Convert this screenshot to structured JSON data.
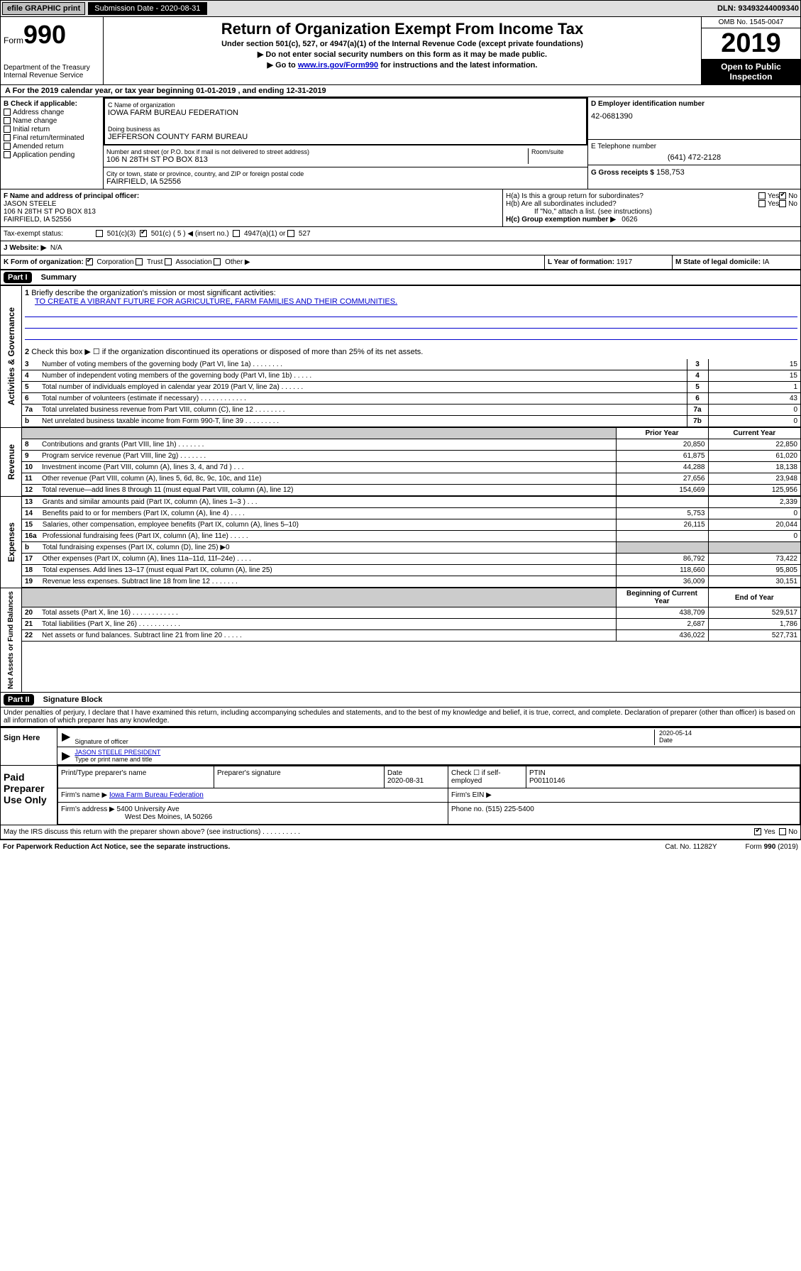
{
  "topbar": {
    "efile": "efile GRAPHIC print",
    "submission_label": "Submission Date - 2020-08-31",
    "dln": "DLN: 93493244009340"
  },
  "header": {
    "form_label": "Form",
    "form_num": "990",
    "dept": "Department of the Treasury\nInternal Revenue Service",
    "title": "Return of Organization Exempt From Income Tax",
    "subtitle": "Under section 501(c), 527, or 4947(a)(1) of the Internal Revenue Code (except private foundations)",
    "note1": "▶ Do not enter social security numbers on this form as it may be made public.",
    "note2_pre": "▶ Go to ",
    "note2_link": "www.irs.gov/Form990",
    "note2_post": " for instructions and the latest information.",
    "omb": "OMB No. 1545-0047",
    "year": "2019",
    "open": "Open to Public Inspection"
  },
  "row_a": "A For the 2019 calendar year, or tax year beginning 01-01-2019   , and ending 12-31-2019",
  "section_b": {
    "header": "B Check if applicable:",
    "items": [
      "Address change",
      "Name change",
      "Initial return",
      "Final return/terminated",
      "Amended return",
      "Application pending"
    ]
  },
  "section_c": {
    "name_label": "C Name of organization",
    "name": "IOWA FARM BUREAU FEDERATION",
    "dba_label": "Doing business as",
    "dba": "JEFFERSON COUNTY FARM BUREAU",
    "addr_label": "Number and street (or P.O. box if mail is not delivered to street address)",
    "room_label": "Room/suite",
    "addr": "106 N 28TH ST PO BOX 813",
    "city_label": "City or town, state or province, country, and ZIP or foreign postal code",
    "city": "FAIRFIELD, IA  52556"
  },
  "section_d": {
    "label": "D Employer identification number",
    "ein": "42-0681390"
  },
  "section_e": {
    "label": "E Telephone number",
    "phone": "(641) 472-2128"
  },
  "section_g": {
    "label": "G Gross receipts $",
    "val": "158,753"
  },
  "section_f": {
    "label": "F  Name and address of principal officer:",
    "name": "JASON STEELE",
    "addr1": "106 N 28TH ST PO BOX 813",
    "addr2": "FAIRFIELD, IA  52556"
  },
  "section_h": {
    "ha": "H(a)  Is this a group return for subordinates?",
    "hb": "H(b)  Are all subordinates included?",
    "hb_note": "If \"No,\" attach a list. (see instructions)",
    "hc": "H(c)  Group exemption number ▶",
    "hc_val": "0626"
  },
  "tax_status": {
    "label": "Tax-exempt status:",
    "c5": "501(c) ( 5 ) ◀ (insert no.)",
    "c3": "501(c)(3)",
    "c4947": "4947(a)(1) or",
    "c527": "527"
  },
  "section_j": {
    "label": "J Website: ▶",
    "val": "N/A"
  },
  "section_k": {
    "label": "K Form of organization:",
    "corp": "Corporation",
    "trust": "Trust",
    "assoc": "Association",
    "other": "Other ▶"
  },
  "section_l": {
    "label": "L Year of formation:",
    "val": "1917"
  },
  "section_m": {
    "label": "M State of legal domicile:",
    "val": "IA"
  },
  "part1": {
    "title": "Part I",
    "subtitle": "Summary",
    "q1_label": "1",
    "q1": "Briefly describe the organization's mission or most significant activities:",
    "q1_val": "TO CREATE A VIBRANT FUTURE FOR AGRICULTURE, FARM FAMILIES AND THEIR COMMUNITIES.",
    "q2": "Check this box ▶ ☐  if the organization discontinued its operations or disposed of more than 25% of its net assets.",
    "sidelabels": {
      "gov": "Activities & Governance",
      "rev": "Revenue",
      "exp": "Expenses",
      "net": "Net Assets or Fund Balances"
    },
    "gov_rows": [
      {
        "n": "3",
        "d": "Number of voting members of the governing body (Part VI, line 1a)   .   .   .   .   .   .   .   .",
        "b": "3",
        "v": "15"
      },
      {
        "n": "4",
        "d": "Number of independent voting members of the governing body (Part VI, line 1b)   .   .   .   .   .",
        "b": "4",
        "v": "15"
      },
      {
        "n": "5",
        "d": "Total number of individuals employed in calendar year 2019 (Part V, line 2a)   .   .   .   .   .   .",
        "b": "5",
        "v": "1"
      },
      {
        "n": "6",
        "d": "Total number of volunteers (estimate if necessary)   .   .   .   .   .   .   .   .   .   .   .   .",
        "b": "6",
        "v": "43"
      },
      {
        "n": "7a",
        "d": "Total unrelated business revenue from Part VIII, column (C), line 12   .   .   .   .   .   .   .   .",
        "b": "7a",
        "v": "0"
      },
      {
        "n": "b",
        "d": "Net unrelated business taxable income from Form 990-T, line 39   .   .   .   .   .   .   .   .   .",
        "b": "7b",
        "v": "0"
      }
    ],
    "col_prior": "Prior Year",
    "col_current": "Current Year",
    "rev_rows": [
      {
        "n": "8",
        "d": "Contributions and grants (Part VIII, line 1h)   .   .   .   .   .   .   .",
        "p": "20,850",
        "c": "22,850"
      },
      {
        "n": "9",
        "d": "Program service revenue (Part VIII, line 2g)   .   .   .   .   .   .   .",
        "p": "61,875",
        "c": "61,020"
      },
      {
        "n": "10",
        "d": "Investment income (Part VIII, column (A), lines 3, 4, and 7d )   .   .   .",
        "p": "44,288",
        "c": "18,138"
      },
      {
        "n": "11",
        "d": "Other revenue (Part VIII, column (A), lines 5, 6d, 8c, 9c, 10c, and 11e)",
        "p": "27,656",
        "c": "23,948"
      },
      {
        "n": "12",
        "d": "Total revenue—add lines 8 through 11 (must equal Part VIII, column (A), line 12)",
        "p": "154,669",
        "c": "125,956"
      }
    ],
    "exp_rows": [
      {
        "n": "13",
        "d": "Grants and similar amounts paid (Part IX, column (A), lines 1–3 )   .   .   .",
        "p": "",
        "c": "2,339"
      },
      {
        "n": "14",
        "d": "Benefits paid to or for members (Part IX, column (A), line 4)   .   .   .   .",
        "p": "5,753",
        "c": "0"
      },
      {
        "n": "15",
        "d": "Salaries, other compensation, employee benefits (Part IX, column (A), lines 5–10)",
        "p": "26,115",
        "c": "20,044"
      },
      {
        "n": "16a",
        "d": "Professional fundraising fees (Part IX, column (A), line 11e)   .   .   .   .   .",
        "p": "",
        "c": "0"
      },
      {
        "n": "b",
        "d": "Total fundraising expenses (Part IX, column (D), line 25) ▶0",
        "p": "shaded",
        "c": "shaded"
      },
      {
        "n": "17",
        "d": "Other expenses (Part IX, column (A), lines 11a–11d, 11f–24e)   .   .   .   .",
        "p": "86,792",
        "c": "73,422"
      },
      {
        "n": "18",
        "d": "Total expenses. Add lines 13–17 (must equal Part IX, column (A), line 25)",
        "p": "118,660",
        "c": "95,805"
      },
      {
        "n": "19",
        "d": "Revenue less expenses. Subtract line 18 from line 12   .   .   .   .   .   .   .",
        "p": "36,009",
        "c": "30,151"
      }
    ],
    "col_begin": "Beginning of Current Year",
    "col_end": "End of Year",
    "net_rows": [
      {
        "n": "20",
        "d": "Total assets (Part X, line 16)   .   .   .   .   .   .   .   .   .   .   .   .",
        "p": "438,709",
        "c": "529,517"
      },
      {
        "n": "21",
        "d": "Total liabilities (Part X, line 26)   .   .   .   .   .   .   .   .   .   .   .",
        "p": "2,687",
        "c": "1,786"
      },
      {
        "n": "22",
        "d": "Net assets or fund balances. Subtract line 21 from line 20   .   .   .   .   .",
        "p": "436,022",
        "c": "527,731"
      }
    ]
  },
  "part2": {
    "title": "Part II",
    "subtitle": "Signature Block",
    "perjury": "Under penalties of perjury, I declare that I have examined this return, including accompanying schedules and statements, and to the best of my knowledge and belief, it is true, correct, and complete. Declaration of preparer (other than officer) is based on all information of which preparer has any knowledge.",
    "sign_here": "Sign Here",
    "sig_officer": "Signature of officer",
    "sig_date": "2020-05-14",
    "date_label": "Date",
    "officer_name": "JASON STEELE PRESIDENT",
    "type_name": "Type or print name and title",
    "paid": "Paid Preparer Use Only",
    "prep_name_label": "Print/Type preparer's name",
    "prep_sig_label": "Preparer's signature",
    "prep_date_label": "Date",
    "prep_date": "2020-08-31",
    "self_emp": "Check ☐ if self-employed",
    "ptin_label": "PTIN",
    "ptin": "P00110146",
    "firm_name_label": "Firm's name    ▶",
    "firm_name": "Iowa Farm Bureau Federation",
    "firm_ein_label": "Firm's EIN ▶",
    "firm_addr_label": "Firm's address ▶",
    "firm_addr1": "5400 University Ave",
    "firm_addr2": "West Des Moines, IA  50266",
    "firm_phone_label": "Phone no.",
    "firm_phone": "(515) 225-5400",
    "discuss": "May the IRS discuss this return with the preparer shown above? (see instructions)   .   .   .   .   .   .   .   .   .   ."
  },
  "footer": {
    "paperwork": "For Paperwork Reduction Act Notice, see the separate instructions.",
    "cat": "Cat. No. 11282Y",
    "form": "Form 990 (2019)"
  },
  "colors": {
    "link": "#0000cc",
    "black": "#000000",
    "shade": "#cccccc"
  }
}
